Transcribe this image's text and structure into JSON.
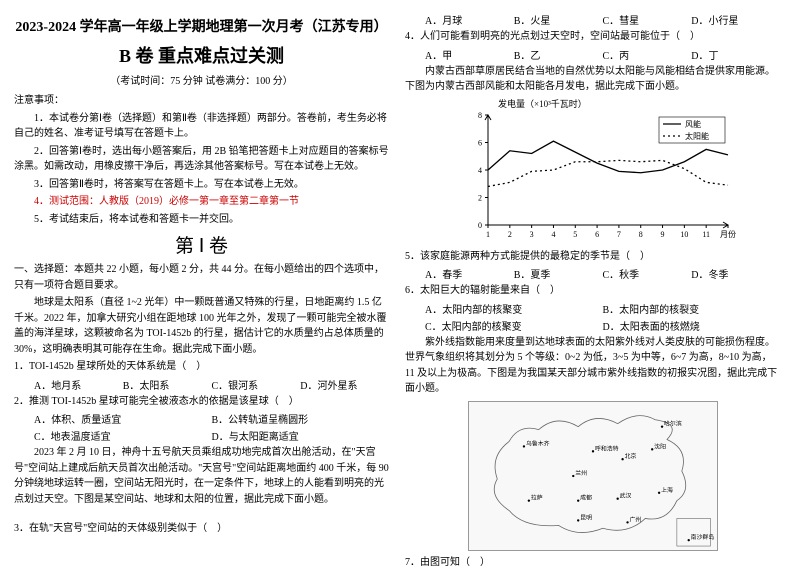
{
  "left": {
    "title": "2023-2024 学年高一年级上学期地理第一次月考（江苏专用）",
    "subtitle": "B 卷 重点难点过关测",
    "exam_info": "（考试时间：75 分钟    试卷满分：100 分）",
    "notes_header": "注意事项：",
    "notes": [
      "1．本试卷分第Ⅰ卷（选择题）和第Ⅱ卷（非选择题）两部分。答卷前，考生务必将自己的姓名、准考证号填写在答题卡上。",
      "2．回答第Ⅰ卷时，选出每小题答案后，用 2B 铅笔把答题卡上对应题目的答案标号涂黑。如需改动，用橡皮擦干净后，再选涂其他答案标号。写在本试卷上无效。",
      "3．回答第Ⅱ卷时，将答案写在答题卡上。写在本试卷上无效。",
      "4．测试范围：人教版（2019）必修一第一章至第二章第一节",
      "5．考试结束后，将本试卷和答题卡一并交回。"
    ],
    "vol1": "第 Ⅰ 卷",
    "sec1_head": "一、选择题：本题共 22 小题，每小题 2 分，共 44 分。在每小题给出的四个选项中，只有一项符合题目要求。",
    "passage1": [
      "地球是太阳系（直径 1~2 光年）中一颗既普通又特殊的行星，日地距离约 1.5 亿千米。2022 年，加拿大研究小组在距地球 100 光年之外，发现了一颗可能完全被水覆盖的海洋星球，这颗被命名为 TOI-1452b 的行星，据估计它的水质量约占总体质量的 30%，这明确表明其可能存在生命。据此完成下面小题。"
    ],
    "q1": "1．TOI-1452b 星球所处的天体系统是（　）",
    "q1_opts": {
      "A": "A．地月系",
      "B": "B．太阳系",
      "C": "C．银河系",
      "D": "D．河外星系"
    },
    "q2": "2．推测 TOI-1452b 星球可能完全被液态水的依据是该星球（　）",
    "q2_opts": {
      "A": "A．体积、质量适宜",
      "B": "B．公转轨道呈椭圆形",
      "C": "C．地表温度适宜",
      "D": "D．与太阳距离适宜"
    },
    "passage2": [
      "2023 年 2 月 10 日，神舟十五号航天员乘组成功地完成首次出舱活动，在\"天宫号\"空间站上建成后航天员首次出舱活动。\"天宫号\"空间站距离地面约 400 千米，每 90 分钟绕地球运转一圈，空间站无阳光时，在一定条件下，地球上的人能看到明亮的光点划过天空。下图是某空间站、地球和太阳的位置，据此完成下面小题。"
    ],
    "q3": "3．在轨\"天宫号\"空间站的天体级别类似于（　）"
  },
  "right": {
    "q3_opts": {
      "A": "A．月球",
      "B": "B．火星",
      "C": "C．彗星",
      "D": "D．小行星"
    },
    "q4": "4．人们可能看到明亮的光点划过天空时，空间站最可能位于（　）",
    "q4_opts": {
      "A": "A．甲",
      "B": "B．乙",
      "C": "C．丙",
      "D": "D．丁"
    },
    "passage3": "内蒙古西部草原居民结合当地的自然优势以太阳能与风能相结合提供家用能源。下图为内蒙古西部风能和太阳能各月发电，据此完成下面小题。",
    "chart": {
      "ytitle": "发电量（×10³千瓦时）",
      "legend": {
        "wind": "风能",
        "solar": "太阳能"
      },
      "xticks": [
        "1",
        "2",
        "3",
        "4",
        "5",
        "6",
        "7",
        "8",
        "9",
        "10",
        "11",
        "月份"
      ],
      "ylim": [
        0,
        8
      ],
      "ytick_step": 2,
      "colors": {
        "wind": "#000",
        "solar": "#000",
        "grid": "#fff",
        "axis": "#000",
        "bg": "#fff"
      },
      "wind_style": "solid",
      "solar_style": "dotted",
      "wind_values": [
        4.0,
        5.4,
        5.2,
        6.1,
        5.3,
        4.5,
        3.9,
        3.8,
        4.0,
        4.6,
        5.5,
        5.1
      ],
      "solar_values": [
        2.8,
        3.1,
        3.9,
        4.0,
        4.6,
        4.6,
        4.7,
        4.6,
        4.7,
        4.1,
        3.1,
        2.9
      ],
      "line_width": 1.3
    },
    "q5": "5．该家庭能源两种方式能提供的最稳定的季节是（　）",
    "q5_opts": {
      "A": "A．春季",
      "B": "B．夏季",
      "C": "C．秋季",
      "D": "D．冬季"
    },
    "q6": "6．太阳巨大的辐射能量来自（　）",
    "q6_opts": {
      "A": "A．太阳内部的核聚变",
      "B": "B．太阳内部的核裂变",
      "C": "C．太阳内部的核聚变",
      "D": "D．太阳表面的核燃烧"
    },
    "passage4": "紫外线指数能用来度量到达地球表面的太阳紫外线对人类皮肤的可能损伤程度。世界气象组织将其划分为 5 个等级：0~2 为低，3~5 为中等，6~7 为高，8~10 为高，11 及以上为极高。下图是为我国某天部分城市紫外线指数的初报实况图，据此完成下面小题。",
    "map": {
      "cities": [
        "乌鲁木齐",
        "哈尔滨",
        "呼和浩特",
        "沈阳",
        "北京",
        "兰州",
        "拉萨",
        "成都",
        "武汉",
        "上海",
        "昆明",
        "广州",
        "南沙群岛"
      ],
      "border_color": "#666"
    },
    "q7": "7．由图可知（　）"
  }
}
